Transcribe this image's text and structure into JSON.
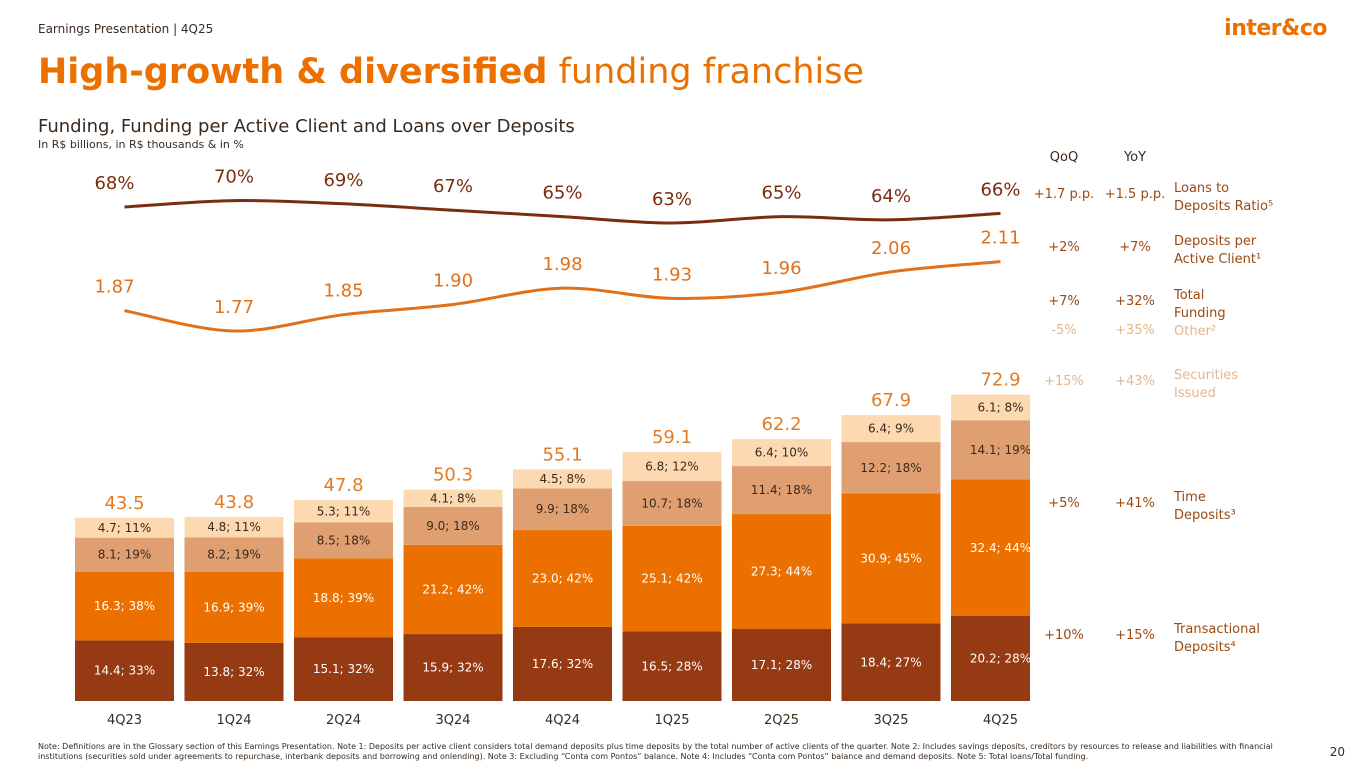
{
  "header": {
    "left": "Earnings Presentation | 4Q25",
    "logo": "inter&co",
    "title_bold": "High-growth & diversified",
    "title_light": "funding franchise",
    "subtitle": "Funding, Funding per Active Client and Loans over Deposits",
    "units": "In R$ billions, in R$ thousands & in %"
  },
  "colors": {
    "transactional": "#953a13",
    "time": "#ec7000",
    "securities": "#e09f70",
    "other": "#fcd9b0",
    "ratio_line": "#7a2e0e",
    "dpc_line": "#e0701a",
    "totals": "#e07c25"
  },
  "side_table": {
    "qoq_header": "QoQ",
    "yoy_header": "YoY",
    "rows": [
      {
        "key": "ratio",
        "qoq": "+1.7 p.p.",
        "yoy": "+1.5 p.p.",
        "label1": "Loans to",
        "label2": "Deposits Ratio⁵",
        "faded": false
      },
      {
        "key": "dpc",
        "qoq": "+2%",
        "yoy": "+7%",
        "label1": "Deposits per",
        "label2": "Active Client¹",
        "faded": false
      },
      {
        "key": "total",
        "qoq": "+7%",
        "yoy": "+32%",
        "label1": "Total",
        "label2": "Funding",
        "faded": false
      },
      {
        "key": "other",
        "qoq": "-5%",
        "yoy": "+35%",
        "label1": "Other²",
        "label2": "",
        "faded": true
      },
      {
        "key": "securities",
        "qoq": "+15%",
        "yoy": "+43%",
        "label1": "Securities",
        "label2": "Issued",
        "faded": true
      },
      {
        "key": "time",
        "qoq": "+5%",
        "yoy": "+41%",
        "label1": "Time",
        "label2": "Deposits³",
        "faded": false
      },
      {
        "key": "transactional",
        "qoq": "+10%",
        "yoy": "+15%",
        "label1": "Transactional",
        "label2": "Deposits⁴",
        "faded": false
      }
    ]
  },
  "chart_data": {
    "type": "bar",
    "stacked": true,
    "categories": [
      "4Q23",
      "1Q24",
      "2Q24",
      "3Q24",
      "4Q24",
      "1Q25",
      "2Q25",
      "3Q25",
      "4Q25"
    ],
    "totals": [
      43.5,
      43.8,
      47.8,
      50.3,
      55.1,
      59.1,
      62.2,
      67.9,
      72.9
    ],
    "total_labels": [
      "43.5",
      "43.8",
      "47.8",
      "50.3",
      "55.1",
      "59.1",
      "62.2",
      "67.9",
      "72.9"
    ],
    "series": [
      {
        "name": "Transactional Deposits",
        "values": [
          14.4,
          13.8,
          15.1,
          15.9,
          17.6,
          16.5,
          17.1,
          18.4,
          20.2
        ],
        "labels": [
          "14.4; 33%",
          "13.8; 32%",
          "15.1; 32%",
          "15.9; 32%",
          "17.6; 32%",
          "16.5; 28%",
          "17.1; 28%",
          "18.4; 27%",
          "20.2; 28%"
        ]
      },
      {
        "name": "Time Deposits",
        "values": [
          16.3,
          16.9,
          18.8,
          21.2,
          23.0,
          25.1,
          27.3,
          30.9,
          32.4
        ],
        "labels": [
          "16.3; 38%",
          "16.9; 39%",
          "18.8; 39%",
          "21.2; 42%",
          "23.0; 42%",
          "25.1; 42%",
          "27.3; 44%",
          "30.9; 45%",
          "32.4; 44%"
        ]
      },
      {
        "name": "Securities Issued",
        "values": [
          8.1,
          8.2,
          8.5,
          9.0,
          9.9,
          10.7,
          11.4,
          12.2,
          14.1
        ],
        "labels": [
          "8.1; 19%",
          "8.2; 19%",
          "8.5; 18%",
          "9.0; 18%",
          "9.9; 18%",
          "10.7; 18%",
          "11.4; 18%",
          "12.2; 18%",
          "14.1; 19%"
        ]
      },
      {
        "name": "Other",
        "values": [
          4.7,
          4.8,
          5.3,
          4.1,
          4.5,
          6.8,
          6.4,
          6.4,
          6.1
        ],
        "labels": [
          "4.7; 11%",
          "4.8; 11%",
          "5.3; 11%",
          "4.1; 8%",
          "4.5; 8%",
          "6.8; 12%",
          "6.4; 10%",
          "6.4; 9%",
          "6.1; 8%"
        ]
      }
    ],
    "lines": [
      {
        "name": "Loans to Deposits Ratio",
        "values": [
          68,
          70,
          69,
          67,
          65,
          63,
          65,
          64,
          66
        ],
        "labels": [
          "68%",
          "70%",
          "69%",
          "67%",
          "65%",
          "63%",
          "65%",
          "64%",
          "66%"
        ]
      },
      {
        "name": "Deposits per Active Client",
        "values": [
          1.87,
          1.77,
          1.85,
          1.9,
          1.98,
          1.93,
          1.96,
          2.06,
          2.11
        ],
        "labels": [
          "1.87",
          "1.77",
          "1.85",
          "1.90",
          "1.98",
          "1.93",
          "1.96",
          "2.06",
          "2.11"
        ]
      }
    ]
  },
  "footnote": "Note: Definitions are in the Glossary section of this Earnings Presentation. Note 1: Deposits per active client considers total demand deposits plus time deposits by the total number of active clients of the quarter. Note 2: Includes savings deposits, creditors by resources to release and liabilities with financial institutions (securities sold under agreements to repurchase, interbank deposits and borrowing and onlending). Note 3: Excluding “Conta com Pontos” balance. Note 4: Includes “Conta com Pontos” balance and demand deposits. Note 5: Total loans/Total funding.",
  "page_number": "20"
}
